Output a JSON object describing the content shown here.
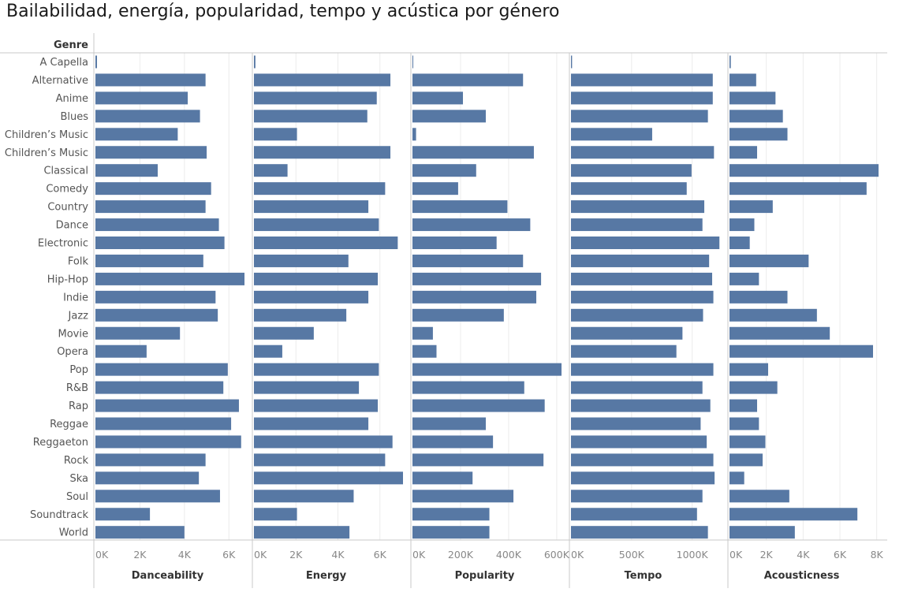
{
  "title": "Bailabilidad, energía, popularidad, tempo y acústica por género",
  "chart_data": {
    "type": "bar",
    "orientation": "horizontal",
    "row_header": "Genre",
    "categories": [
      "A Capella",
      "Alternative",
      "Anime",
      "Blues",
      "Children’s Music",
      "Children’s Music",
      "Classical",
      "Comedy",
      "Country",
      "Dance",
      "Electronic",
      "Folk",
      "Hip-Hop",
      "Indie",
      "Jazz",
      "Movie",
      "Opera",
      "Pop",
      "R&B",
      "Rap",
      "Reggae",
      "Reggaeton",
      "Rock",
      "Ska",
      "Soul",
      "Soundtrack",
      "World"
    ],
    "panels": [
      {
        "name": "Danceability",
        "xlim": [
          0,
          6700
        ],
        "ticks": [
          {
            "value": 0,
            "label": "0K"
          },
          {
            "value": 2000,
            "label": "2K"
          },
          {
            "value": 4000,
            "label": "4K"
          },
          {
            "value": 6000,
            "label": "6K"
          }
        ],
        "values": [
          70,
          4950,
          4150,
          4700,
          3700,
          5000,
          2800,
          5200,
          4950,
          5550,
          5800,
          4850,
          6700,
          5400,
          5500,
          3800,
          2300,
          5950,
          5750,
          6450,
          6100,
          6550,
          4950,
          4650,
          5600,
          2450,
          4000
        ]
      },
      {
        "name": "Energy",
        "xlim": [
          0,
          7100
        ],
        "ticks": [
          {
            "value": 0,
            "label": "0K"
          },
          {
            "value": 2000,
            "label": "2K"
          },
          {
            "value": 4000,
            "label": "4K"
          },
          {
            "value": 6000,
            "label": "6K"
          }
        ],
        "values": [
          70,
          6500,
          5850,
          5400,
          2050,
          6500,
          1600,
          6250,
          5450,
          5950,
          6850,
          4500,
          5900,
          5450,
          4400,
          2850,
          1350,
          5950,
          5000,
          5900,
          5450,
          6600,
          6250,
          7100,
          4750,
          2050,
          4550
        ]
      },
      {
        "name": "Popularity",
        "xlim": [
          0,
          620000
        ],
        "ticks": [
          {
            "value": 0,
            "label": "0K"
          },
          {
            "value": 200000,
            "label": "200K"
          },
          {
            "value": 400000,
            "label": "400K"
          },
          {
            "value": 600000,
            "label": "600K"
          }
        ],
        "values": [
          600,
          460000,
          210000,
          305000,
          15000,
          505000,
          265000,
          190000,
          395000,
          490000,
          350000,
          460000,
          535000,
          515000,
          380000,
          85000,
          100000,
          620000,
          465000,
          550000,
          305000,
          335000,
          545000,
          250000,
          420000,
          320000,
          320000
        ]
      },
      {
        "name": "Tempo",
        "xlim": [
          0,
          1230000
        ],
        "ticks": [
          {
            "value": 0,
            "label": "0K"
          },
          {
            "value": 500000,
            "label": "500K"
          },
          {
            "value": 1000000,
            "label": "1000K"
          }
        ],
        "values": [
          9000,
          1170000,
          1170000,
          1130000,
          670000,
          1180000,
          995000,
          955000,
          1100000,
          1085000,
          1225000,
          1140000,
          1165000,
          1175000,
          1090000,
          920000,
          870000,
          1175000,
          1085000,
          1150000,
          1070000,
          1120000,
          1175000,
          1185000,
          1085000,
          1040000,
          1130000
        ]
      },
      {
        "name": "Acousticness",
        "xlim": [
          0,
          8100
        ],
        "ticks": [
          {
            "value": 0,
            "label": "0K"
          },
          {
            "value": 2000,
            "label": "2K"
          },
          {
            "value": 4000,
            "label": "4K"
          },
          {
            "value": 6000,
            "label": "6K"
          },
          {
            "value": 8000,
            "label": "8K"
          }
        ],
        "values": [
          70,
          1450,
          2500,
          2900,
          3150,
          1500,
          8100,
          7450,
          2350,
          1350,
          1100,
          4300,
          1600,
          3150,
          4750,
          5450,
          7800,
          2100,
          2600,
          1500,
          1600,
          1950,
          1800,
          800,
          3250,
          6950,
          3550
        ]
      }
    ],
    "grid": "vertical",
    "color": "#5778a4"
  }
}
